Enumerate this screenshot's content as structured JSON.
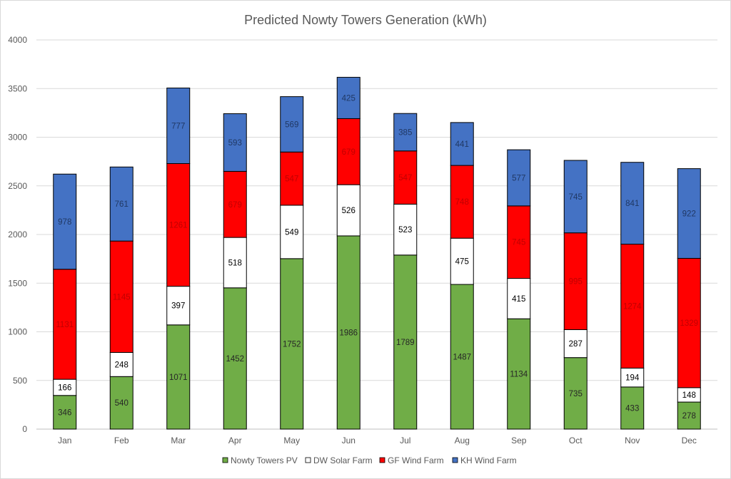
{
  "chart_data": {
    "type": "bar",
    "stacked": true,
    "title": "Predicted Nowty Towers Generation (kWh)",
    "xlabel": "",
    "ylabel": "",
    "ylim": [
      0,
      4000
    ],
    "yticks": [
      0,
      500,
      1000,
      1500,
      2000,
      2500,
      3000,
      3500,
      4000
    ],
    "grid": true,
    "legend_position": "bottom",
    "categories": [
      "Jan",
      "Feb",
      "Mar",
      "Apr",
      "May",
      "Jun",
      "Jul",
      "Aug",
      "Sep",
      "Oct",
      "Nov",
      "Dec"
    ],
    "series": [
      {
        "name": "Nowty Towers PV",
        "color": "#70ad47",
        "label_color": "#262626",
        "values": [
          346,
          540,
          1071,
          1452,
          1752,
          1986,
          1789,
          1487,
          1134,
          735,
          433,
          278
        ]
      },
      {
        "name": "DW Solar Farm",
        "color": "#ffffff",
        "label_color": "#000000",
        "values": [
          166,
          248,
          397,
          518,
          549,
          526,
          523,
          475,
          415,
          287,
          194,
          148
        ]
      },
      {
        "name": "GF Wind Farm",
        "color": "#ff0000",
        "label_color": "#c00000",
        "values": [
          1131,
          1145,
          1261,
          679,
          547,
          679,
          547,
          748,
          745,
          995,
          1274,
          1329
        ]
      },
      {
        "name": "KH Wind Farm",
        "color": "#4472c4",
        "label_color": "#203864",
        "values": [
          978,
          761,
          777,
          593,
          569,
          425,
          385,
          441,
          577,
          745,
          841,
          922
        ]
      }
    ]
  }
}
